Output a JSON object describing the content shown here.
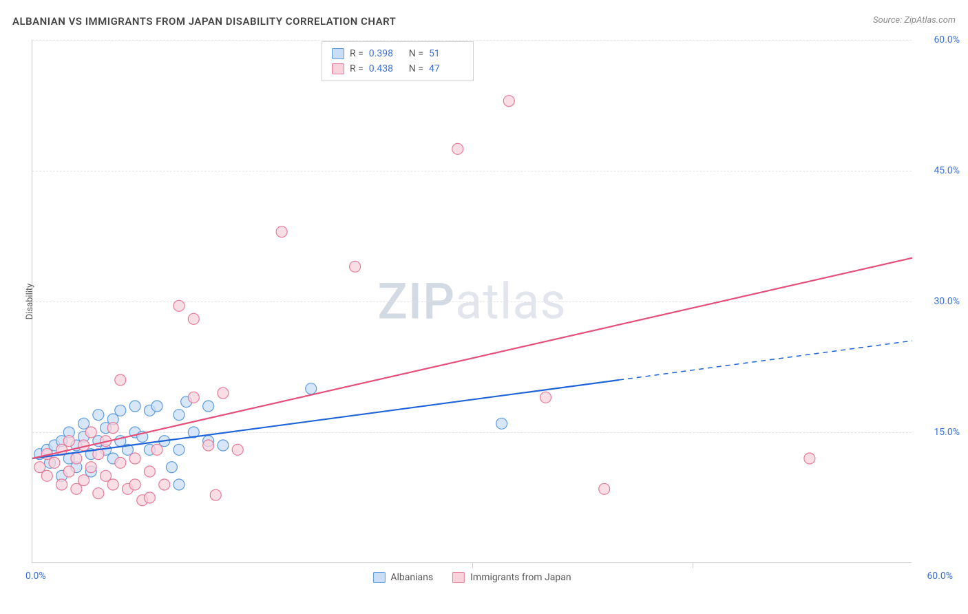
{
  "title": "ALBANIAN VS IMMIGRANTS FROM JAPAN DISABILITY CORRELATION CHART",
  "source": "Source: ZipAtlas.com",
  "y_axis_title": "Disability",
  "watermark": {
    "bold": "ZIP",
    "rest": "atlas"
  },
  "chart": {
    "type": "scatter",
    "xlim": [
      0,
      60
    ],
    "ylim": [
      0,
      60
    ],
    "x_origin_label": "0.0%",
    "x_max_label": "60.0%",
    "y_ticks": [
      15,
      30,
      45,
      60
    ],
    "y_tick_labels": [
      "15.0%",
      "30.0%",
      "45.0%",
      "60.0%"
    ],
    "x_ticks": [
      30,
      45
    ],
    "background_color": "#ffffff",
    "grid_color": "#e3e3e3",
    "axis_color": "#c9c9c9",
    "tick_label_color": "#3b6fd8",
    "marker_radius": 8,
    "marker_stroke_width": 1.2,
    "line_width": 2.2,
    "series": [
      {
        "name": "Albanians",
        "fill": "#c9ddf5",
        "stroke": "#5a9be0",
        "line_color": "#1d64d8",
        "R": "0.398",
        "N": "51",
        "trend": {
          "x1": 0,
          "y1": 12.0,
          "x2": 60,
          "y2": 25.5,
          "solid_until_x": 40
        },
        "points": [
          [
            0.5,
            12.5
          ],
          [
            1,
            13
          ],
          [
            1.2,
            11.5
          ],
          [
            1.5,
            13.5
          ],
          [
            2,
            14
          ],
          [
            2,
            10
          ],
          [
            2.5,
            12
          ],
          [
            2.5,
            15
          ],
          [
            3,
            13.5
          ],
          [
            3,
            11
          ],
          [
            3.5,
            14.5
          ],
          [
            3.5,
            16
          ],
          [
            4,
            12.5
          ],
          [
            4,
            10.5
          ],
          [
            4.5,
            14
          ],
          [
            4.5,
            17
          ],
          [
            5,
            13
          ],
          [
            5,
            15.5
          ],
          [
            5.5,
            12
          ],
          [
            5.5,
            16.5
          ],
          [
            6,
            14
          ],
          [
            6,
            17.5
          ],
          [
            6.5,
            13
          ],
          [
            7,
            15
          ],
          [
            7,
            18
          ],
          [
            7.5,
            14.5
          ],
          [
            8,
            13
          ],
          [
            8,
            17.5
          ],
          [
            8.5,
            18
          ],
          [
            9,
            14
          ],
          [
            9.5,
            11
          ],
          [
            10,
            17
          ],
          [
            10,
            13
          ],
          [
            10,
            9
          ],
          [
            10.5,
            18.5
          ],
          [
            11,
            15
          ],
          [
            12,
            14
          ],
          [
            12,
            18
          ],
          [
            13,
            13.5
          ],
          [
            19,
            20
          ],
          [
            32,
            16
          ]
        ]
      },
      {
        "name": "Immigrants from Japan",
        "fill": "#f8d3dc",
        "stroke": "#e77a97",
        "line_color": "#e54f7a",
        "R": "0.438",
        "N": "47",
        "trend": {
          "x1": 0,
          "y1": 12.0,
          "x2": 60,
          "y2": 35.0,
          "solid_until_x": 60
        },
        "points": [
          [
            0.5,
            11
          ],
          [
            1,
            10
          ],
          [
            1,
            12.5
          ],
          [
            1.5,
            11.5
          ],
          [
            2,
            9
          ],
          [
            2,
            13
          ],
          [
            2.5,
            10.5
          ],
          [
            2.5,
            14
          ],
          [
            3,
            8.5
          ],
          [
            3,
            12
          ],
          [
            3.5,
            9.5
          ],
          [
            3.5,
            13.5
          ],
          [
            4,
            11
          ],
          [
            4,
            15
          ],
          [
            4.5,
            8
          ],
          [
            4.5,
            12.5
          ],
          [
            5,
            10
          ],
          [
            5,
            14
          ],
          [
            5.5,
            9
          ],
          [
            5.5,
            15.5
          ],
          [
            6,
            11.5
          ],
          [
            6,
            21
          ],
          [
            6.5,
            8.5
          ],
          [
            7,
            12
          ],
          [
            7,
            9
          ],
          [
            7.5,
            7.2
          ],
          [
            8,
            10.5
          ],
          [
            8,
            7.5
          ],
          [
            8.5,
            13
          ],
          [
            9,
            9
          ],
          [
            10,
            29.5
          ],
          [
            11,
            19
          ],
          [
            11,
            28
          ],
          [
            12,
            13.5
          ],
          [
            12.5,
            7.8
          ],
          [
            13,
            19.5
          ],
          [
            14,
            13
          ],
          [
            17,
            38
          ],
          [
            22,
            34
          ],
          [
            29,
            47.5
          ],
          [
            32.5,
            53
          ],
          [
            35,
            19
          ],
          [
            39,
            8.5
          ],
          [
            53,
            12
          ]
        ]
      }
    ]
  },
  "top_legend": {
    "rows": [
      {
        "swatch_fill": "#c9ddf5",
        "swatch_stroke": "#5a9be0",
        "R_label": "R =",
        "R_val": "0.398",
        "N_label": "N =",
        "N_val": "51"
      },
      {
        "swatch_fill": "#f8d3dc",
        "swatch_stroke": "#e77a97",
        "R_label": "R =",
        "R_val": "0.438",
        "N_label": "N =",
        "N_val": "47"
      }
    ]
  },
  "bottom_legend": {
    "items": [
      {
        "swatch_fill": "#c9ddf5",
        "swatch_stroke": "#5a9be0",
        "label": "Albanians"
      },
      {
        "swatch_fill": "#f8d3dc",
        "swatch_stroke": "#e77a97",
        "label": "Immigrants from Japan"
      }
    ]
  }
}
